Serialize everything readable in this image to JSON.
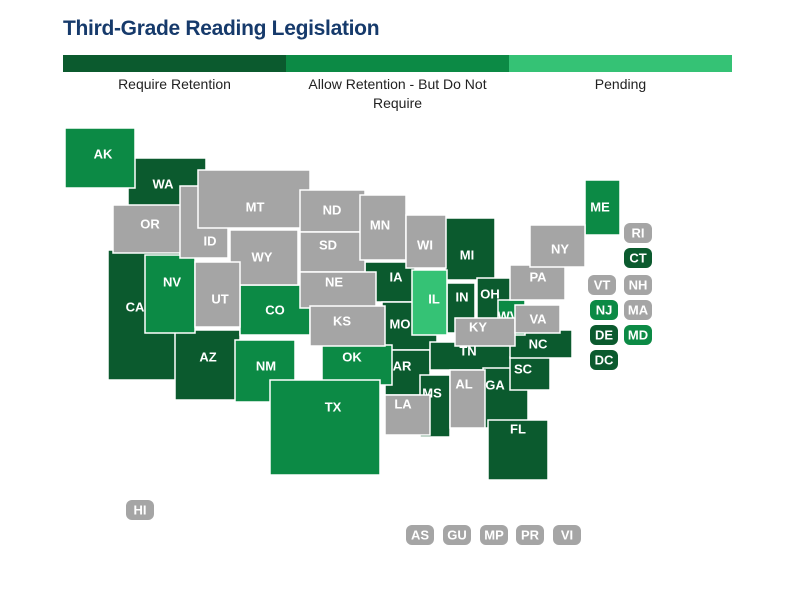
{
  "header": {
    "title": "Third-Grade Reading Legislation"
  },
  "legend": [
    {
      "label": "Require Retention",
      "color": "#0b5a2e",
      "states": [
        "WA",
        "CA",
        "AZ",
        "IA",
        "MO",
        "AR",
        "MS",
        "TN",
        "GA",
        "SC",
        "NC",
        "FL",
        "MI",
        "IN",
        "OH",
        "CT",
        "DE",
        "DC"
      ]
    },
    {
      "label": "Allow Retention - But Do Not Require",
      "color": "#0c8a45",
      "states": [
        "AK",
        "NV",
        "CO",
        "NM",
        "OK",
        "TX",
        "WV",
        "ME",
        "NJ",
        "MD"
      ]
    },
    {
      "label": "Pending",
      "color": "#35c275",
      "states": [
        "IL"
      ]
    }
  ],
  "unassigned": {
    "color": "#a5a5a5",
    "states": [
      "OR",
      "ID",
      "MT",
      "WY",
      "UT",
      "ND",
      "SD",
      "NE",
      "KS",
      "MN",
      "WI",
      "LA",
      "AL",
      "KY",
      "VA",
      "PA",
      "NY",
      "RI",
      "VT",
      "NH",
      "MA",
      "HI",
      "AS",
      "GU",
      "MP",
      "PR",
      "VI"
    ]
  }
}
